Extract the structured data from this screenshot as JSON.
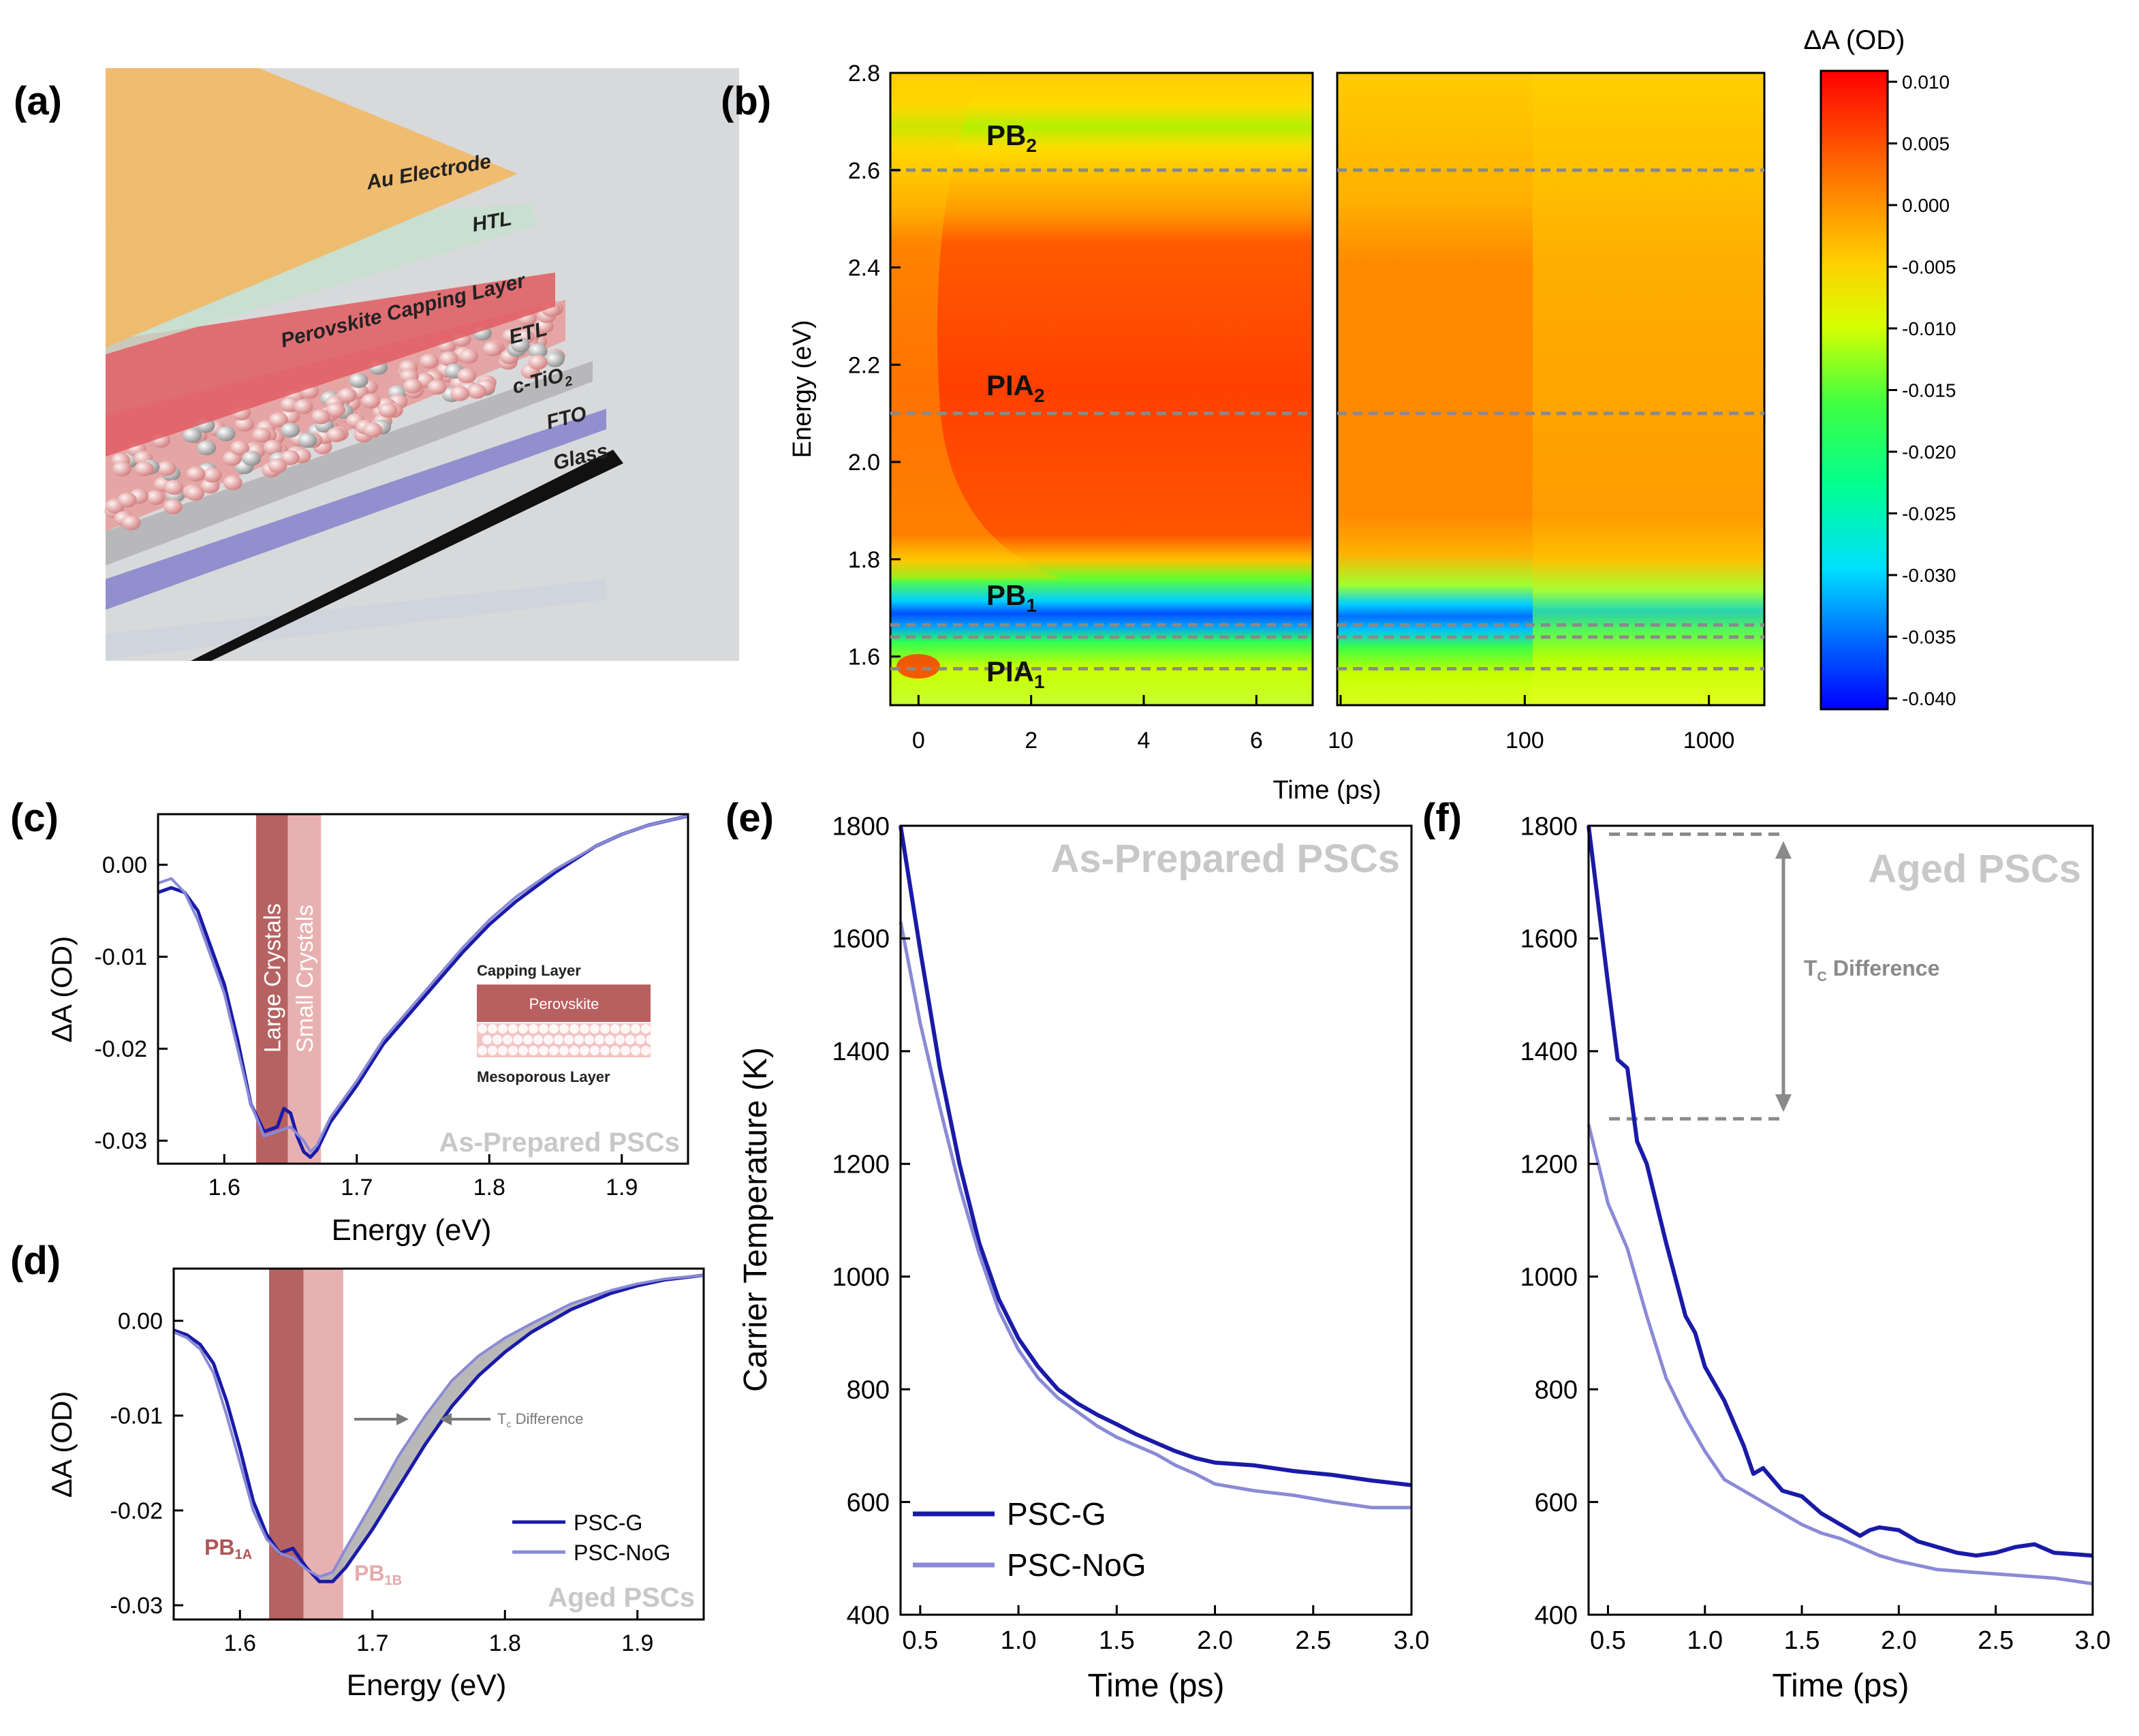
{
  "panel_labels": {
    "a": "(a)",
    "b": "(b)",
    "c": "(c)",
    "d": "(d)",
    "e": "(e)",
    "f": "(f)"
  },
  "colors": {
    "psc_g": "#1a1aa8",
    "psc_nog": "#8a8ad6",
    "large": "#b05555",
    "small": "#e6aaaa",
    "watermark": "#c8c8c8",
    "dash": "#8a8a8a"
  },
  "schematic": {
    "layers": [
      "Au Electrode",
      "HTL",
      "Perovskite Capping Layer",
      "ETL",
      "c-TiO",
      "FTO",
      "Glass"
    ],
    "tio2_sub": "2"
  },
  "heatmap": {
    "ylabel": "Energy (eV)",
    "xlabel": "Time (ps)",
    "yticks": [
      "2.8",
      "2.6",
      "2.4",
      "2.2",
      "2.0",
      "1.8",
      "1.6"
    ],
    "xticks_lin": [
      "0",
      "2",
      "4",
      "6"
    ],
    "xticks_log": [
      "10",
      "100",
      "1000"
    ],
    "annotations": [
      {
        "label": "PB",
        "sub": "2",
        "energy": 2.6
      },
      {
        "label": "PIA",
        "sub": "2",
        "energy": 2.1
      },
      {
        "label": "PB",
        "sub": "1",
        "energy": 1.665
      },
      {
        "label": "PIA",
        "sub": "1",
        "energy": 1.575
      }
    ],
    "extra_dash_energy": 1.64,
    "colorbar_title": "ΔA (OD)",
    "colorbar_ticks": [
      "0.010",
      "0.005",
      "0.000",
      "-0.005",
      "-0.010",
      "-0.015",
      "-0.020",
      "-0.025",
      "-0.030",
      "-0.035",
      "-0.040"
    ]
  },
  "panel_c": {
    "ylabel": "ΔA (OD)",
    "xlabel": "Energy (eV)",
    "yticks": [
      "0.00",
      "-0.01",
      "-0.02",
      "-0.03"
    ],
    "xticks": [
      "1.6",
      "1.7",
      "1.8",
      "1.9"
    ],
    "band_large": "Large Crystals",
    "band_small": "Small Crystals",
    "watermark": "As-Prepared PSCs",
    "inset": {
      "top": "Capping Layer",
      "middle": "Perovskite",
      "bottom": "Mesoporous Layer"
    }
  },
  "panel_d": {
    "ylabel": "ΔA (OD)",
    "xlabel": "Energy (eV)",
    "yticks": [
      "0.00",
      "-0.01",
      "-0.02",
      "-0.03"
    ],
    "xticks": [
      "1.6",
      "1.7",
      "1.8",
      "1.9"
    ],
    "pb1a": "PB",
    "pb1a_sub": "1A",
    "pb1b": "PB",
    "pb1b_sub": "1B",
    "tc_main": "T",
    "tc_sub": "c",
    "tc_rest": " Difference",
    "watermark": "Aged PSCs",
    "legend": [
      "PSC-G",
      "PSC-NoG"
    ]
  },
  "panel_e": {
    "ylabel": "Carrier Temperature (K)",
    "xlabel": "Time (ps)",
    "yticks": [
      "1800",
      "1600",
      "1400",
      "1200",
      "1000",
      "800",
      "600",
      "400"
    ],
    "xticks": [
      "0.5",
      "1.0",
      "1.5",
      "2.0",
      "2.5",
      "3.0"
    ],
    "watermark": "As-Prepared PSCs",
    "legend": [
      "PSC-G",
      "PSC-NoG"
    ]
  },
  "panel_f": {
    "yticks": [
      "1800",
      "1600",
      "1400",
      "1200",
      "1000",
      "800",
      "600",
      "400"
    ],
    "xticks": [
      "0.5",
      "1.0",
      "1.5",
      "2.0",
      "2.5",
      "3.0"
    ],
    "xlabel": "Time (ps)",
    "watermark": "Aged PSCs",
    "tc_main": "T",
    "tc_sub": "C",
    "tc_rest": " Difference"
  },
  "chart_data": [
    {
      "type": "heatmap",
      "id": "b",
      "title": "",
      "xlabel": "Time (ps)",
      "ylabel": "Energy (eV)",
      "ylim": [
        1.5,
        2.8
      ],
      "xlim_linear": [
        -0.5,
        7.0
      ],
      "xlim_log": [
        10,
        2000
      ],
      "zlabel": "ΔA (OD)",
      "zlim": [
        -0.04,
        0.011
      ],
      "features": [
        {
          "name": "PB2",
          "energy": 2.6,
          "sign": "negative"
        },
        {
          "name": "PIA2",
          "energy": 2.1,
          "sign": "positive"
        },
        {
          "name": "PB1",
          "energy": 1.66,
          "sign": "negative"
        },
        {
          "name": "PIA1",
          "energy": 1.575,
          "sign": "positive"
        }
      ]
    },
    {
      "type": "line",
      "id": "c",
      "xlabel": "Energy (eV)",
      "ylabel": "ΔA (OD)",
      "xlim": [
        1.55,
        1.95
      ],
      "ylim": [
        -0.0325,
        0.0055
      ],
      "series": [
        {
          "name": "PSC-G",
          "x": [
            1.55,
            1.56,
            1.57,
            1.58,
            1.59,
            1.6,
            1.61,
            1.62,
            1.63,
            1.64,
            1.645,
            1.65,
            1.655,
            1.66,
            1.665,
            1.67,
            1.68,
            1.7,
            1.72,
            1.75,
            1.78,
            1.8,
            1.82,
            1.85,
            1.88,
            1.9,
            1.92,
            1.95
          ],
          "y": [
            -0.003,
            -0.0025,
            -0.003,
            -0.005,
            -0.009,
            -0.013,
            -0.019,
            -0.026,
            -0.029,
            -0.0285,
            -0.0265,
            -0.027,
            -0.0295,
            -0.0312,
            -0.0318,
            -0.031,
            -0.028,
            -0.024,
            -0.0195,
            -0.0145,
            -0.0095,
            -0.0065,
            -0.004,
            -0.0008,
            0.002,
            0.0033,
            0.0043,
            0.0053
          ]
        },
        {
          "name": "PSC-NoG",
          "x": [
            1.55,
            1.56,
            1.57,
            1.58,
            1.59,
            1.6,
            1.61,
            1.62,
            1.63,
            1.64,
            1.65,
            1.66,
            1.665,
            1.67,
            1.68,
            1.7,
            1.72,
            1.75,
            1.78,
            1.8,
            1.82,
            1.85,
            1.88,
            1.9,
            1.92,
            1.95
          ],
          "y": [
            -0.002,
            -0.0015,
            -0.003,
            -0.006,
            -0.01,
            -0.014,
            -0.02,
            -0.026,
            -0.0295,
            -0.029,
            -0.0285,
            -0.03,
            -0.0312,
            -0.0305,
            -0.0275,
            -0.0235,
            -0.019,
            -0.014,
            -0.009,
            -0.006,
            -0.0035,
            -0.0005,
            0.002,
            0.0033,
            0.0043,
            0.0053
          ]
        }
      ],
      "bands": [
        {
          "name": "Large Crystals",
          "x": [
            1.624,
            1.648
          ]
        },
        {
          "name": "Small Crystals",
          "x": [
            1.648,
            1.673
          ]
        }
      ]
    },
    {
      "type": "line",
      "id": "d",
      "xlabel": "Energy (eV)",
      "ylabel": "ΔA (OD)",
      "xlim": [
        1.55,
        1.95
      ],
      "ylim": [
        -0.0315,
        0.0055
      ],
      "series": [
        {
          "name": "PSC-G",
          "x": [
            1.55,
            1.56,
            1.57,
            1.58,
            1.59,
            1.6,
            1.61,
            1.62,
            1.63,
            1.64,
            1.65,
            1.66,
            1.67,
            1.68,
            1.7,
            1.72,
            1.74,
            1.76,
            1.78,
            1.8,
            1.82,
            1.85,
            1.88,
            1.9,
            1.92,
            1.95
          ],
          "y": [
            -0.001,
            -0.0015,
            -0.0025,
            -0.0045,
            -0.0085,
            -0.0135,
            -0.019,
            -0.0225,
            -0.0245,
            -0.024,
            -0.026,
            -0.0275,
            -0.0275,
            -0.026,
            -0.022,
            -0.0175,
            -0.013,
            -0.009,
            -0.0058,
            -0.0033,
            -0.0012,
            0.0012,
            0.0029,
            0.0037,
            0.0043,
            0.0048
          ]
        },
        {
          "name": "PSC-NoG",
          "x": [
            1.55,
            1.56,
            1.57,
            1.58,
            1.59,
            1.6,
            1.61,
            1.62,
            1.63,
            1.64,
            1.65,
            1.66,
            1.67,
            1.68,
            1.7,
            1.72,
            1.74,
            1.76,
            1.78,
            1.8,
            1.82,
            1.85,
            1.88,
            1.9,
            1.92,
            1.95
          ],
          "y": [
            -0.0012,
            -0.0018,
            -0.003,
            -0.0055,
            -0.01,
            -0.015,
            -0.02,
            -0.023,
            -0.0245,
            -0.025,
            -0.0262,
            -0.027,
            -0.0265,
            -0.024,
            -0.0192,
            -0.0142,
            -0.01,
            -0.0063,
            -0.0037,
            -0.0018,
            -0.0003,
            0.0018,
            0.0032,
            0.0039,
            0.0044,
            0.0048
          ]
        }
      ],
      "bands": [
        {
          "name": "PB1A",
          "x": [
            1.622,
            1.648
          ]
        },
        {
          "name": "PB1B",
          "x": [
            1.648,
            1.678
          ]
        }
      ]
    },
    {
      "type": "line",
      "id": "e",
      "xlabel": "Time (ps)",
      "ylabel": "Carrier Temperature (K)",
      "xlim": [
        0.4,
        3.0
      ],
      "ylim": [
        400,
        1800
      ],
      "series": [
        {
          "name": "PSC-G",
          "x": [
            0.4,
            0.5,
            0.6,
            0.7,
            0.8,
            0.9,
            1.0,
            1.1,
            1.2,
            1.3,
            1.4,
            1.5,
            1.6,
            1.7,
            1.8,
            1.9,
            2.0,
            2.2,
            2.4,
            2.6,
            2.8,
            3.0
          ],
          "y": [
            1800,
            1580,
            1370,
            1200,
            1060,
            960,
            890,
            840,
            800,
            775,
            755,
            738,
            720,
            705,
            690,
            678,
            670,
            665,
            655,
            648,
            638,
            630
          ]
        },
        {
          "name": "PSC-NoG",
          "x": [
            0.4,
            0.5,
            0.6,
            0.7,
            0.8,
            0.9,
            1.0,
            1.1,
            1.2,
            1.3,
            1.4,
            1.5,
            1.6,
            1.7,
            1.8,
            1.9,
            2.0,
            2.2,
            2.4,
            2.6,
            2.8,
            3.0
          ],
          "y": [
            1630,
            1450,
            1300,
            1160,
            1040,
            940,
            870,
            820,
            785,
            760,
            735,
            715,
            700,
            685,
            665,
            650,
            632,
            620,
            612,
            600,
            590,
            590
          ]
        }
      ]
    },
    {
      "type": "line",
      "id": "f",
      "xlabel": "Time (ps)",
      "ylabel": "Carrier Temperature (K)",
      "xlim": [
        0.4,
        3.0
      ],
      "ylim": [
        400,
        1800
      ],
      "series": [
        {
          "name": "PSC-G",
          "x": [
            0.4,
            0.5,
            0.55,
            0.6,
            0.65,
            0.7,
            0.8,
            0.9,
            0.95,
            1.0,
            1.1,
            1.2,
            1.25,
            1.3,
            1.35,
            1.4,
            1.5,
            1.6,
            1.7,
            1.8,
            1.85,
            1.9,
            2.0,
            2.1,
            2.2,
            2.3,
            2.4,
            2.5,
            2.6,
            2.7,
            2.8,
            3.0
          ],
          "y": [
            1800,
            1520,
            1385,
            1370,
            1240,
            1200,
            1060,
            930,
            900,
            840,
            780,
            700,
            650,
            660,
            640,
            620,
            610,
            580,
            560,
            540,
            550,
            555,
            550,
            530,
            520,
            510,
            505,
            510,
            520,
            525,
            510,
            505
          ]
        },
        {
          "name": "PSC-NoG",
          "x": [
            0.4,
            0.5,
            0.6,
            0.7,
            0.8,
            0.9,
            1.0,
            1.1,
            1.2,
            1.3,
            1.4,
            1.5,
            1.6,
            1.7,
            1.8,
            1.9,
            2.0,
            2.2,
            2.4,
            2.6,
            2.8,
            3.0
          ],
          "y": [
            1270,
            1130,
            1050,
            930,
            820,
            750,
            690,
            640,
            620,
            600,
            580,
            560,
            545,
            535,
            520,
            505,
            495,
            480,
            475,
            470,
            465,
            455
          ]
        }
      ],
      "annotation": {
        "label": "TC Difference",
        "from": 1280,
        "to": 1785
      }
    }
  ]
}
